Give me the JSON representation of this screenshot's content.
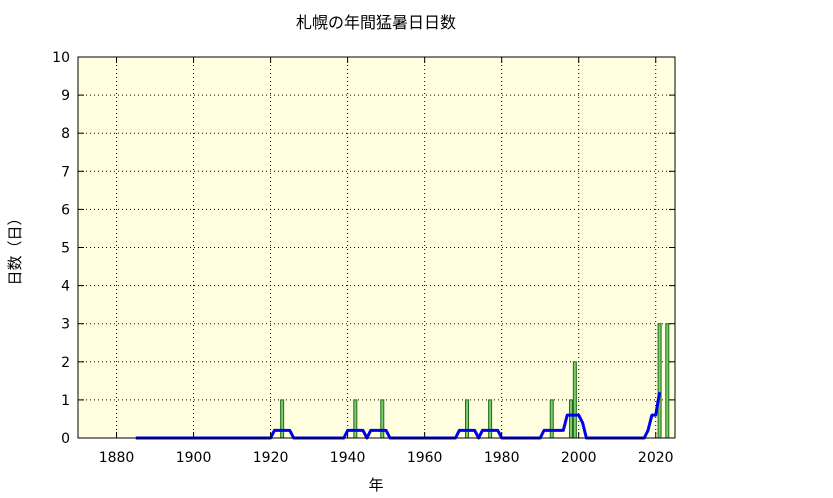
{
  "chart_data": {
    "type": "bar",
    "title": "札幌の年間猛暑日日数",
    "xlabel": "年",
    "ylabel": "日数（日）",
    "xlim": [
      1870,
      2025
    ],
    "ylim": [
      0,
      10
    ],
    "xticks": [
      1880,
      1900,
      1920,
      1940,
      1960,
      1980,
      2000,
      2020
    ],
    "yticks": [
      0,
      1,
      2,
      3,
      4,
      5,
      6,
      7,
      8,
      9,
      10
    ],
    "grid": true,
    "colors": {
      "plot_background": "#ffffe0",
      "bar_fill": "#7ccc6a",
      "bar_edge": "#1e6b1e",
      "line": "#0000ee"
    },
    "series": [
      {
        "type": "bar",
        "x": [
          1923,
          1942,
          1949,
          1971,
          1977,
          1993,
          1998,
          1999,
          2021,
          2023
        ],
        "values": [
          1,
          1,
          1,
          1,
          1,
          1,
          1,
          2,
          3,
          3
        ]
      },
      {
        "type": "line",
        "x": [
          1885,
          1920,
          1921,
          1922,
          1923,
          1924,
          1925,
          1926,
          1927,
          1939,
          1940,
          1941,
          1942,
          1943,
          1944,
          1945,
          1946,
          1947,
          1948,
          1949,
          1950,
          1951,
          1952,
          1953,
          1968,
          1969,
          1970,
          1971,
          1972,
          1973,
          1974,
          1975,
          1976,
          1977,
          1978,
          1979,
          1980,
          1990,
          1991,
          1992,
          1993,
          1994,
          1995,
          1996,
          1997,
          1998,
          1999,
          2000,
          2001,
          2002,
          2017,
          2018,
          2019,
          2020,
          2021
        ],
        "values": [
          0,
          0,
          0.2,
          0.2,
          0.2,
          0.2,
          0.2,
          0,
          0,
          0,
          0.2,
          0.2,
          0.2,
          0.2,
          0.2,
          0,
          0.2,
          0.2,
          0.2,
          0.2,
          0.2,
          0,
          0,
          0,
          0,
          0.2,
          0.2,
          0.2,
          0.2,
          0.2,
          0,
          0.2,
          0.2,
          0.2,
          0.2,
          0.2,
          0,
          0,
          0.2,
          0.2,
          0.2,
          0.2,
          0.2,
          0.2,
          0.6,
          0.6,
          0.6,
          0.6,
          0.4,
          0,
          0,
          0.2,
          0.6,
          0.6,
          1.2
        ]
      }
    ]
  }
}
